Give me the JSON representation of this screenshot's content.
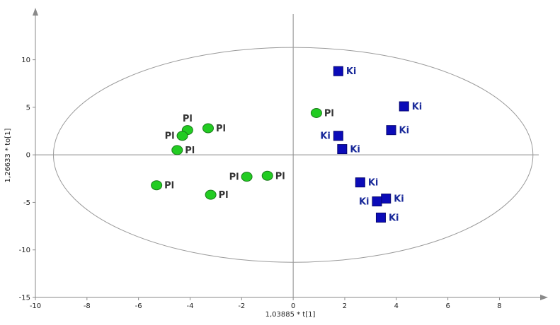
{
  "chart_data": {
    "type": "scatter",
    "xlabel": "1,03885 * t[1]",
    "ylabel": "1,26633 * to[1]",
    "xlim": [
      -10,
      9.8
    ],
    "ylim": [
      -15,
      14.8
    ],
    "x_ticks": [
      -10,
      -8,
      -6,
      -4,
      -2,
      0,
      2,
      4,
      6,
      8
    ],
    "y_ticks": [
      -15,
      -10,
      -5,
      0,
      5,
      10
    ],
    "grid": false,
    "zero_lines": true,
    "confidence_ellipse": {
      "center": [
        0,
        0
      ],
      "semi_axis_x": 9.3,
      "semi_axis_y": 11.3
    },
    "series": [
      {
        "name": "Pl",
        "marker": "circle",
        "color": "#22cc22",
        "edge_color": "#1a7a1a",
        "label_color": "#333333",
        "points": [
          {
            "x": -4.1,
            "y": 2.6,
            "label": "Pl",
            "label_pos": "above"
          },
          {
            "x": -3.3,
            "y": 2.8,
            "label": "Pl",
            "label_pos": "right"
          },
          {
            "x": -4.3,
            "y": 2.0,
            "label": "Pl",
            "label_pos": "left"
          },
          {
            "x": -4.5,
            "y": 0.5,
            "label": "Pl",
            "label_pos": "right"
          },
          {
            "x": -5.3,
            "y": -3.2,
            "label": "Pl",
            "label_pos": "right"
          },
          {
            "x": -3.2,
            "y": -4.2,
            "label": "Pl",
            "label_pos": "right"
          },
          {
            "x": -1.8,
            "y": -2.3,
            "label": "Pl",
            "label_pos": "left"
          },
          {
            "x": -1.0,
            "y": -2.2,
            "label": "Pl",
            "label_pos": "right"
          },
          {
            "x": 0.9,
            "y": 4.4,
            "label": "Pl",
            "label_pos": "right"
          }
        ]
      },
      {
        "name": "Ki",
        "marker": "square",
        "color": "#0b0bb8",
        "edge_color": "#050570",
        "label_color": "#1a2a9a",
        "points": [
          {
            "x": 1.75,
            "y": 8.8,
            "label": "Ki",
            "label_pos": "right"
          },
          {
            "x": 4.3,
            "y": 5.1,
            "label": "Ki",
            "label_pos": "right"
          },
          {
            "x": 3.8,
            "y": 2.6,
            "label": "Ki",
            "label_pos": "right"
          },
          {
            "x": 1.75,
            "y": 2.0,
            "label": "Ki",
            "label_pos": "left"
          },
          {
            "x": 1.9,
            "y": 0.6,
            "label": "Ki",
            "label_pos": "right"
          },
          {
            "x": 2.6,
            "y": -2.9,
            "label": "Ki",
            "label_pos": "right"
          },
          {
            "x": 3.6,
            "y": -4.6,
            "label": "Ki",
            "label_pos": "right"
          },
          {
            "x": 3.25,
            "y": -4.9,
            "label": "Ki",
            "label_pos": "left"
          },
          {
            "x": 3.4,
            "y": -6.6,
            "label": "Ki",
            "label_pos": "right"
          }
        ]
      }
    ]
  },
  "colors": {
    "axis": "#8a8a8a",
    "zero_line": "#8a8a8a",
    "ellipse": "#9a9a9a",
    "tick_text": "#222222"
  }
}
